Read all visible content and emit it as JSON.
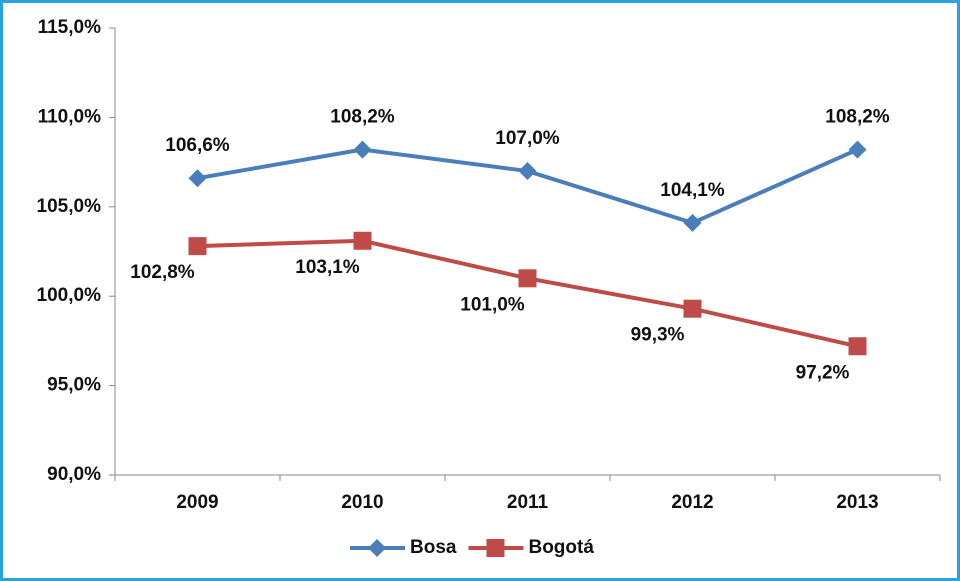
{
  "chart_data": {
    "type": "line",
    "categories": [
      "2009",
      "2010",
      "2011",
      "2012",
      "2013"
    ],
    "series": [
      {
        "name": "Bosa",
        "color": "#4a7ebb",
        "marker": "diamond",
        "values": [
          106.6,
          108.2,
          107.0,
          104.1,
          108.2
        ],
        "value_labels": [
          "106,6%",
          "108,2%",
          "107,0%",
          "104,1%",
          "108,2%"
        ]
      },
      {
        "name": "Bogotá",
        "color": "#be4b48",
        "marker": "square",
        "values": [
          102.8,
          103.1,
          101.0,
          99.3,
          97.2
        ],
        "value_labels": [
          "102,8%",
          "103,1%",
          "101,0%",
          "99,3%",
          "97,2%"
        ]
      }
    ],
    "ylim": [
      90,
      115
    ],
    "yticks": [
      {
        "value": 90,
        "label": "90,0%"
      },
      {
        "value": 95,
        "label": "95,0%"
      },
      {
        "value": 100,
        "label": "100,0%"
      },
      {
        "value": 105,
        "label": "105,0%"
      },
      {
        "value": 110,
        "label": "110,0%"
      },
      {
        "value": 115,
        "label": "115,0%"
      }
    ],
    "grid": false,
    "legend": "bottom"
  }
}
